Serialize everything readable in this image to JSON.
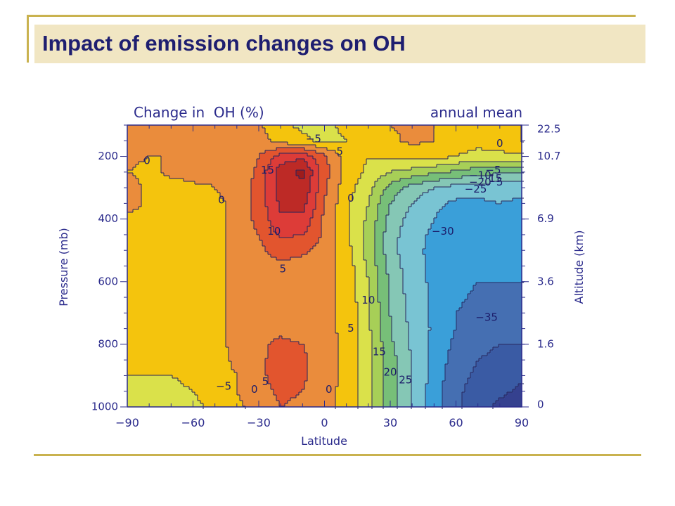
{
  "slide": {
    "title": "Impact of emission changes on OH",
    "accent_color": "#c9b24f",
    "title_band_color": "#f1e6c3",
    "title_color": "#1e1e70"
  },
  "chart_data": {
    "type": "heatmap",
    "title": "Change in  OH (%)",
    "subtitle": "annual mean",
    "xlabel": "Latitude",
    "ylabel": "Pressure (mb)",
    "y2label": "Altitude (km)",
    "xlim": [
      -90,
      90
    ],
    "ylim": [
      1000,
      100
    ],
    "x_ticks": [
      -90,
      -60,
      -30,
      0,
      30,
      60,
      90
    ],
    "y_ticks": [
      200,
      400,
      600,
      800,
      1000
    ],
    "y2_ticks": [
      {
        "pressure": 1000,
        "label": "0"
      },
      {
        "pressure": 800,
        "label": "1.6"
      },
      {
        "pressure": 600,
        "label": "3.6"
      },
      {
        "pressure": 400,
        "label": "6.9"
      },
      {
        "pressure": 200,
        "label": "10.7"
      },
      {
        "pressure": 100,
        "label": "22.5"
      }
    ],
    "lat_grid": [
      -90,
      -80,
      -70,
      -60,
      -50,
      -40,
      -30,
      -20,
      -10,
      0,
      10,
      20,
      30,
      40,
      50,
      60,
      70,
      80,
      90
    ],
    "pressure_grid": [
      100,
      150,
      200,
      250,
      300,
      350,
      400,
      450,
      500,
      550,
      600,
      650,
      700,
      750,
      800,
      850,
      900,
      950,
      1000
    ],
    "values": [
      [
        4,
        3,
        2,
        2,
        3,
        2,
        1,
        -4,
        -6,
        -6,
        -4,
        -2,
        0,
        1,
        0,
        -1,
        -2,
        0,
        0
      ],
      [
        3,
        2,
        2,
        1,
        2,
        2,
        2,
        -2,
        -4,
        -6,
        -5,
        -3,
        -1,
        1,
        0,
        -2,
        -3,
        -1,
        0
      ],
      [
        1,
        0,
        0,
        0,
        0,
        1,
        5,
        12,
        14,
        6,
        -2,
        -5,
        -4,
        -3,
        -3,
        -5,
        -7,
        -7,
        -6
      ],
      [
        0,
        -1,
        1,
        2,
        1,
        1,
        6,
        18,
        21,
        7,
        -2,
        -6,
        -10,
        -12,
        -14,
        -16,
        -18,
        -19,
        -20
      ],
      [
        2,
        -1,
        -2,
        -1,
        0,
        2,
        7,
        17,
        19,
        6,
        -3,
        -8,
        -17,
        -22,
        -25,
        -27,
        -28,
        -28,
        -28
      ],
      [
        2,
        -1,
        -2,
        -2,
        -1,
        1,
        7,
        16,
        17,
        5,
        -4,
        -10,
        -20,
        -25,
        -29,
        -31,
        -31,
        -30,
        -31
      ],
      [
        -1,
        -2,
        -2,
        -2,
        -1,
        1,
        7,
        14,
        14,
        4,
        -4,
        -11,
        -22,
        -27,
        -30,
        -32,
        -32,
        -31,
        -32
      ],
      [
        -1,
        -2,
        -2,
        -2,
        -1,
        1,
        5,
        11,
        10,
        4,
        -4,
        -12,
        -23,
        -28,
        -31,
        -32,
        -33,
        -32,
        -32
      ],
      [
        -2,
        -2,
        -2,
        -2,
        -1,
        1,
        4,
        7,
        6,
        3,
        -3,
        -12,
        -23,
        -29,
        -31,
        -32,
        -34,
        -33,
        -33
      ],
      [
        -2,
        -2,
        -2,
        -2,
        -1,
        1,
        3,
        4,
        3,
        2,
        -2,
        -11,
        -22,
        -28,
        -31,
        -33,
        -34,
        -34,
        -34
      ],
      [
        -2,
        -2,
        -2,
        -2,
        -1,
        1,
        2,
        3,
        3,
        1,
        -1,
        -10,
        -21,
        -28,
        -31,
        -33,
        -35,
        -35,
        -35
      ],
      [
        -2,
        -2,
        -2,
        -2,
        -1,
        1,
        2,
        3,
        2,
        1,
        -1,
        -10,
        -21,
        -27,
        -31,
        -34,
        -36,
        -36,
        -36
      ],
      [
        -2,
        -2,
        -2,
        -2,
        -1,
        1,
        3,
        3,
        2,
        1,
        -1,
        -9,
        -20,
        -27,
        -31,
        -35,
        -37,
        -37,
        -37
      ],
      [
        -2,
        -2,
        -2,
        -2,
        -1,
        1,
        3,
        4,
        3,
        1,
        -1,
        -9,
        -20,
        -26,
        -31,
        -35,
        -38,
        -38,
        -38
      ],
      [
        -2,
        -2,
        -2,
        -2,
        -1,
        1,
        4,
        6,
        5,
        2,
        -1,
        -8,
        -19,
        -26,
        -32,
        -36,
        -39,
        -40,
        -40
      ],
      [
        -3,
        -3,
        -3,
        -3,
        -2,
        1,
        4,
        7,
        6,
        2,
        -1,
        -8,
        -18,
        -25,
        -32,
        -37,
        -40,
        -41,
        -42
      ],
      [
        -5,
        -5,
        -5,
        -4,
        -2,
        0,
        4,
        7,
        6,
        2,
        -1,
        -8,
        -18,
        -25,
        -32,
        -38,
        -41,
        -43,
        -44
      ],
      [
        -6,
        -6,
        -6,
        -5,
        -3,
        0,
        3,
        6,
        5,
        1,
        -1,
        -8,
        -18,
        -25,
        -33,
        -39,
        -42,
        -44,
        -46
      ],
      [
        -7,
        -7,
        -7,
        -6,
        -4,
        -1,
        2,
        5,
        4,
        1,
        -1,
        -8,
        -18,
        -25,
        -33,
        -39,
        -43,
        -46,
        -48
      ]
    ],
    "contour_levels": [
      -45,
      -40,
      -35,
      -30,
      -25,
      -20,
      -15,
      -10,
      -5,
      0,
      5,
      10,
      15,
      20
    ],
    "level_colors": [
      "#35418f",
      "#3a5ba4",
      "#456fb2",
      "#3a9fd9",
      "#79c4d3",
      "#85c7b5",
      "#77bf78",
      "#a7cf57",
      "#dae14a",
      "#f4c40d",
      "#ea8c3c",
      "#e2552e",
      "#dd3c38",
      "#bd2a26",
      "#9e1c1c"
    ],
    "contour_labels": [
      {
        "lat": -81,
        "p": 215,
        "text": "0"
      },
      {
        "lat": -47,
        "p": 340,
        "text": "0"
      },
      {
        "lat": -26,
        "p": 245,
        "text": "15"
      },
      {
        "lat": -23,
        "p": 440,
        "text": "10"
      },
      {
        "lat": -19,
        "p": 560,
        "text": "5"
      },
      {
        "lat": -5,
        "p": 145,
        "text": "−5"
      },
      {
        "lat": 7,
        "p": 185,
        "text": "5"
      },
      {
        "lat": 12,
        "p": 335,
        "text": "0"
      },
      {
        "lat": 20,
        "p": 660,
        "text": "10"
      },
      {
        "lat": 12,
        "p": 750,
        "text": "5"
      },
      {
        "lat": 25,
        "p": 825,
        "text": "15"
      },
      {
        "lat": 30,
        "p": 890,
        "text": "20"
      },
      {
        "lat": 37,
        "p": 915,
        "text": "25"
      },
      {
        "lat": -46,
        "p": 935,
        "text": "−5"
      },
      {
        "lat": -32,
        "p": 945,
        "text": "0"
      },
      {
        "lat": -27,
        "p": 920,
        "text": "5"
      },
      {
        "lat": 2,
        "p": 945,
        "text": "0"
      },
      {
        "lat": 54,
        "p": 440,
        "text": "−30"
      },
      {
        "lat": 74,
        "p": 715,
        "text": "−35"
      },
      {
        "lat": 80,
        "p": 160,
        "text": "0"
      },
      {
        "lat": 77,
        "p": 245,
        "text": "−5"
      },
      {
        "lat": 71,
        "p": 262,
        "text": "−10"
      },
      {
        "lat": 78,
        "p": 272,
        "text": "15"
      },
      {
        "lat": 71,
        "p": 283,
        "text": "−20"
      },
      {
        "lat": 80,
        "p": 283,
        "text": "5"
      },
      {
        "lat": 69,
        "p": 305,
        "text": "−25"
      }
    ]
  }
}
